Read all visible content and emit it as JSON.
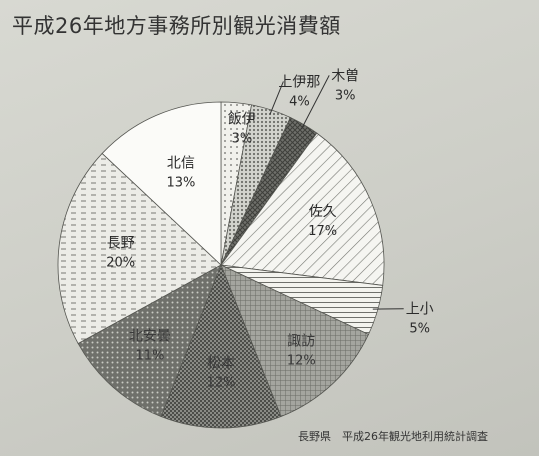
{
  "title": "平成26年地方事務所別観光消費額",
  "source": "長野県　平成26年観光地利用統計調査",
  "chart_data": {
    "type": "pie",
    "title": "平成26年地方事務所別観光消費額",
    "unit": "%",
    "start_angle_deg": 0,
    "direction": "clockwise",
    "slices": [
      {
        "name": "飯伊",
        "value": 3,
        "label": "3%",
        "pattern": "dots",
        "color": "#e9e9e4"
      },
      {
        "name": "上伊那",
        "value": 4,
        "label": "4%",
        "pattern": "dots-dense",
        "color": "#b9bab4"
      },
      {
        "name": "木曽",
        "value": 3,
        "label": "3%",
        "pattern": "crosshatch",
        "color": "#6d6e6a"
      },
      {
        "name": "佐久",
        "value": 17,
        "label": "17%",
        "pattern": "diagonal",
        "color": "#f2f2ee"
      },
      {
        "name": "上小",
        "value": 5,
        "label": "5%",
        "pattern": "horizontal",
        "color": "#efefea"
      },
      {
        "name": "諏訪",
        "value": 12,
        "label": "12%",
        "pattern": "grid",
        "color": "#8d8e89"
      },
      {
        "name": "松本",
        "value": 12,
        "label": "12%",
        "pattern": "checker",
        "color": "#6a6b67"
      },
      {
        "name": "北安曇",
        "value": 11,
        "label": "11%",
        "pattern": "dots-dark",
        "color": "#7b7c77"
      },
      {
        "name": "長野",
        "value": 20,
        "label": "20%",
        "pattern": "dashes",
        "color": "#e4e5df"
      },
      {
        "name": "北信",
        "value": 13,
        "label": "13%",
        "pattern": "solid",
        "color": "#ffffff"
      }
    ]
  }
}
